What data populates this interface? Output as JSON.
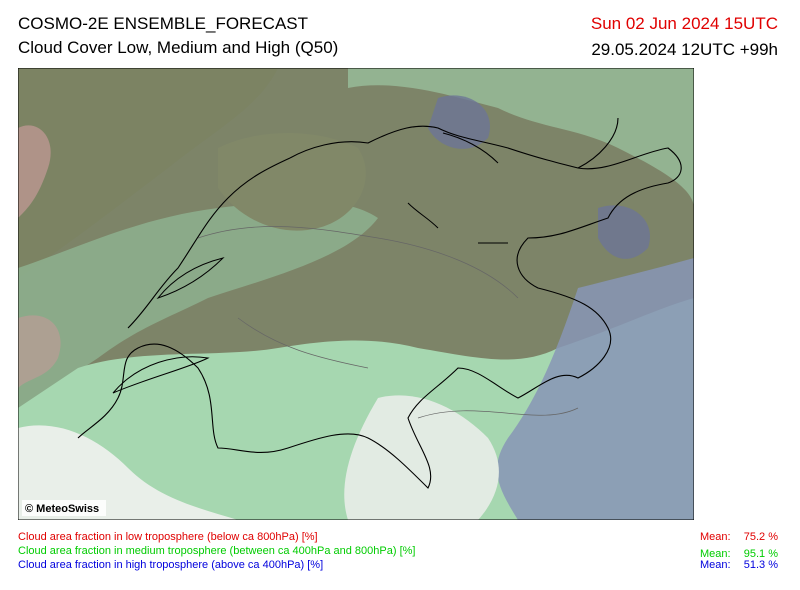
{
  "header": {
    "title": "COSMO-2E ENSEMBLE_FORECAST",
    "subtitle": "Cloud Cover Low, Medium and High (Q50)",
    "valid_time": "Sun 02 Jun 2024 15UTC",
    "run_time": "29.05.2024 12UTC +99h"
  },
  "map": {
    "credit": "© MeteoSwiss"
  },
  "legend": [
    {
      "label": "Cloud area fraction in low troposphere (below ca 800hPa) [%]",
      "mean_label": "Mean:",
      "mean": "75.2 %"
    },
    {
      "label": "Cloud area fraction in medium troposphere (between ca 400hPa and 800hPa) [%]",
      "mean_label": "Mean:",
      "mean": "95.1 %"
    },
    {
      "label": "Cloud area fraction in high troposphere (above ca 400hPa) [%]",
      "mean_label": "Mean:",
      "mean": "51.3 %"
    }
  ]
}
